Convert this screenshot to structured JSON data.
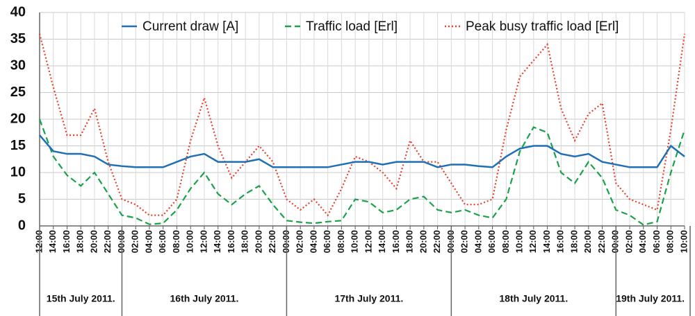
{
  "chart_data": {
    "type": "line",
    "x": [
      0,
      2,
      4,
      6,
      8,
      10,
      12,
      14,
      16,
      18,
      20,
      22,
      24,
      26,
      28,
      30,
      32,
      34,
      36,
      38,
      40,
      42,
      44,
      46,
      48,
      50,
      52,
      54,
      56,
      58,
      60,
      62,
      64,
      66,
      68,
      70,
      72,
      74,
      76,
      78,
      80,
      82,
      84,
      86,
      88,
      90,
      92,
      94
    ],
    "series": [
      {
        "name": "Current draw [A]",
        "color": "#1f6fb5",
        "dash": "solid",
        "values": [
          17,
          14,
          13.5,
          13.5,
          13,
          11.5,
          11.2,
          11,
          11,
          11,
          12,
          13,
          13.5,
          12,
          12,
          12,
          12.5,
          11,
          11,
          11,
          11,
          11,
          11.5,
          12,
          12,
          11.5,
          12,
          12,
          12,
          11,
          11.5,
          11.5,
          11.2,
          11,
          13,
          14.5,
          15,
          15,
          13.5,
          13,
          13.5,
          12,
          11.5,
          11,
          11,
          11,
          15,
          13
        ]
      },
      {
        "name": "Traffic load [Erl]",
        "color": "#1aa14a",
        "dash": "dashed",
        "values": [
          20,
          13,
          9.5,
          7.5,
          10,
          6,
          2,
          1.5,
          0.3,
          0.5,
          3,
          7,
          10,
          6,
          4,
          6,
          7.5,
          4,
          1,
          0.7,
          0.5,
          0.8,
          1,
          5,
          4.5,
          2.5,
          3,
          5,
          5.5,
          3,
          2.5,
          3,
          2,
          1.5,
          5,
          14,
          18.5,
          17.5,
          10,
          8,
          12,
          9,
          3,
          2,
          0.2,
          0.8,
          10,
          18
        ]
      },
      {
        "name": "Peak busy traffic load [Erl]",
        "color": "#e8402a",
        "dash": "dotted",
        "values": [
          36,
          26,
          17,
          17,
          22,
          12,
          5,
          4,
          2,
          2,
          5,
          16,
          24,
          15,
          9,
          12,
          15,
          12,
          5,
          3,
          5,
          2,
          7,
          13,
          12,
          10,
          7,
          16,
          12,
          12,
          8,
          4,
          4,
          5,
          18,
          28,
          31,
          34,
          22,
          16,
          21,
          23,
          8,
          5,
          4,
          3,
          18,
          36
        ]
      }
    ],
    "xlim": [
      0,
      94
    ],
    "xticks": [
      {
        "value": 0,
        "label": "12:00"
      },
      {
        "value": 2,
        "label": "14:00"
      },
      {
        "value": 4,
        "label": "16:00"
      },
      {
        "value": 6,
        "label": "18:00"
      },
      {
        "value": 8,
        "label": "20:00"
      },
      {
        "value": 10,
        "label": "22:00"
      },
      {
        "value": 12,
        "label": "00:00"
      },
      {
        "value": 14,
        "label": "02:00"
      },
      {
        "value": 16,
        "label": "04:00"
      },
      {
        "value": 18,
        "label": "06:00"
      },
      {
        "value": 20,
        "label": "08:00"
      },
      {
        "value": 22,
        "label": "10:00"
      },
      {
        "value": 24,
        "label": "12:00"
      },
      {
        "value": 26,
        "label": "14:00"
      },
      {
        "value": 28,
        "label": "16:00"
      },
      {
        "value": 30,
        "label": "18:00"
      },
      {
        "value": 32,
        "label": "20:00"
      },
      {
        "value": 34,
        "label": "22:00"
      },
      {
        "value": 36,
        "label": "00:00"
      },
      {
        "value": 38,
        "label": "02:00"
      },
      {
        "value": 40,
        "label": "04:00"
      },
      {
        "value": 42,
        "label": "06:00"
      },
      {
        "value": 44,
        "label": "08:00"
      },
      {
        "value": 46,
        "label": "10:00"
      },
      {
        "value": 48,
        "label": "12:00"
      },
      {
        "value": 50,
        "label": "14:00"
      },
      {
        "value": 52,
        "label": "16:00"
      },
      {
        "value": 54,
        "label": "18:00"
      },
      {
        "value": 56,
        "label": "20:00"
      },
      {
        "value": 58,
        "label": "22:00"
      },
      {
        "value": 60,
        "label": "00:00"
      },
      {
        "value": 62,
        "label": "02:00"
      },
      {
        "value": 64,
        "label": "04:00"
      },
      {
        "value": 66,
        "label": "06:00"
      },
      {
        "value": 68,
        "label": "08:00"
      },
      {
        "value": 70,
        "label": "10:00"
      },
      {
        "value": 72,
        "label": "12:00"
      },
      {
        "value": 74,
        "label": "14:00"
      },
      {
        "value": 76,
        "label": "16:00"
      },
      {
        "value": 78,
        "label": "18:00"
      },
      {
        "value": 80,
        "label": "20:00"
      },
      {
        "value": 82,
        "label": "22:00"
      },
      {
        "value": 84,
        "label": "00:00"
      },
      {
        "value": 86,
        "label": "02:00"
      },
      {
        "value": 88,
        "label": "04:00"
      },
      {
        "value": 90,
        "label": "06:00"
      },
      {
        "value": 92,
        "label": "08:00"
      },
      {
        "value": 94,
        "label": "10:00"
      }
    ],
    "ylim": [
      0,
      40
    ],
    "yticks": [
      0,
      5,
      10,
      15,
      20,
      25,
      30,
      35,
      40
    ],
    "day_labels": [
      "15th July 2011.",
      "16th July 2011.",
      "17th July 2011.",
      "18th July 2011.",
      "19th July 2011."
    ],
    "grid": true,
    "legend": "top"
  }
}
